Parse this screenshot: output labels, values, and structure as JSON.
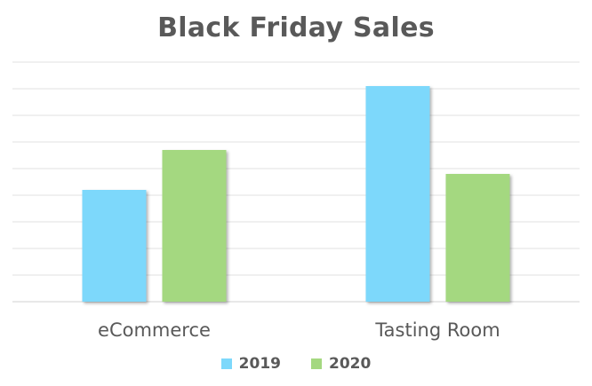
{
  "chart_data": {
    "type": "bar",
    "title": "Black Friday Sales",
    "categories": [
      "eCommerce",
      "Tasting Room"
    ],
    "series": [
      {
        "name": "2019",
        "values": [
          42,
          81
        ],
        "color": "#7dd8fb"
      },
      {
        "name": "2020",
        "values": [
          57,
          48
        ],
        "color": "#a4d880"
      }
    ],
    "ylim": [
      0,
      90
    ],
    "grid": true,
    "legend_position": "bottom"
  }
}
